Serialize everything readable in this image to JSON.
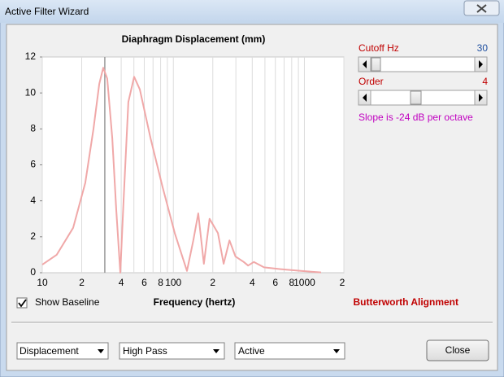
{
  "window": {
    "title": "Active Filter Wizard"
  },
  "chart_data": {
    "type": "line",
    "title": "Diaphragm Displacement (mm)",
    "xlabel": "Frequency (hertz)",
    "x": [
      10,
      12.9,
      17.2,
      21.3,
      24.6,
      27.2,
      29.2,
      31.3,
      34.2,
      36.7,
      39.4,
      41.7,
      45.4,
      50.2,
      55.5,
      66.9,
      82.6,
      102.6,
      127,
      142,
      155,
      171,
      189,
      219,
      242,
      268,
      298,
      345,
      372,
      411,
      492,
      658,
      940,
      1340
    ],
    "series": [
      {
        "name": "Displacement",
        "color": "#f0a8a8",
        "values": [
          0.45,
          1.0,
          2.5,
          5.0,
          8.0,
          10.5,
          11.4,
          10.8,
          7.5,
          3.5,
          0,
          4,
          9.5,
          10.9,
          10.2,
          7.5,
          4.8,
          2.2,
          0.1,
          1.8,
          3.3,
          0.5,
          3.0,
          2.2,
          0.5,
          1.8,
          0.9,
          0.6,
          0.4,
          0.6,
          0.3,
          0.2,
          0.1,
          0.02
        ]
      }
    ],
    "xlim": [
      10,
      2000
    ],
    "xlog": true,
    "xticks": [
      10,
      {
        "value": 20,
        "label": "2"
      },
      {
        "value": 40,
        "label": "4"
      },
      {
        "value": 60,
        "label": "6"
      },
      {
        "value": 80,
        "label": "8"
      },
      100,
      {
        "value": 200,
        "label": "2"
      },
      {
        "value": 400,
        "label": "4"
      },
      {
        "value": 600,
        "label": "6"
      },
      {
        "value": 800,
        "label": "8"
      },
      1000,
      {
        "value": 2000,
        "label": "2"
      }
    ],
    "xgrid_minor": [
      30,
      50,
      70,
      90,
      300,
      500,
      700,
      900
    ],
    "ylim": [
      0,
      12
    ],
    "yticks": [
      0,
      2,
      4,
      6,
      8,
      10,
      12
    ],
    "grid": true
  },
  "controls": {
    "cutoff": {
      "label": "Cutoff  Hz",
      "value": 30
    },
    "order": {
      "label": "Order",
      "value": 4
    },
    "slope": "Slope is -24 dB per octave",
    "show_baseline": "Show Baseline",
    "alignment": "Butterworth Alignment",
    "dropdowns": [
      "Displacement",
      "High Pass",
      "Active"
    ],
    "close": "Close"
  }
}
